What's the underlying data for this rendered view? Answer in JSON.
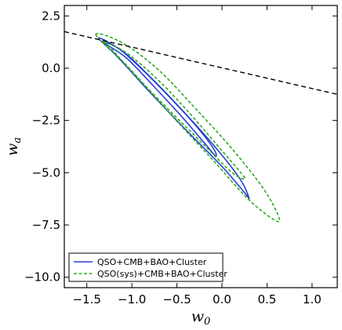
{
  "chart_data": {
    "type": "line",
    "xlabel_main": "w",
    "xlabel_sub": "0",
    "ylabel_main": "w",
    "ylabel_sub": "a",
    "xlim": [
      -1.75,
      1.28
    ],
    "ylim": [
      -10.5,
      3.0
    ],
    "xticks": [
      -1.5,
      -1.0,
      -0.5,
      0.0,
      0.5,
      1.0
    ],
    "xtick_labels": [
      "−1.5",
      "−1.0",
      "−0.5",
      "0.0",
      "0.5",
      "1.0"
    ],
    "yticks": [
      2.5,
      0.0,
      -2.5,
      -5.0,
      -7.5,
      -10.0
    ],
    "ytick_labels": [
      "2.5",
      "0.0",
      "−2.5",
      "−5.0",
      "−7.5",
      "−10.0"
    ],
    "grid": false,
    "legend_position": "bottom-left",
    "series": [
      {
        "name": "QSO+CMB+BAO+Cluster",
        "color": "#2b3fd6",
        "style": "solid",
        "contours": [
          {
            "level": "inner",
            "x": [
              -1.32,
              -1.15,
              -0.9,
              -0.6,
              -0.3,
              -0.1,
              -0.07,
              -0.2,
              -0.45,
              -0.75,
              -1.05,
              -1.25,
              -1.32
            ],
            "y": [
              1.25,
              0.95,
              0.0,
              -1.3,
              -2.7,
              -3.8,
              -4.2,
              -3.55,
              -2.3,
              -0.9,
              0.45,
              1.05,
              1.25
            ]
          },
          {
            "level": "outer",
            "x": [
              -1.37,
              -1.1,
              -0.8,
              -0.4,
              -0.05,
              0.2,
              0.3,
              0.25,
              0.0,
              -0.4,
              -0.8,
              -1.15,
              -1.37
            ],
            "y": [
              1.45,
              0.8,
              -0.4,
              -2.2,
              -3.9,
              -5.3,
              -6.2,
              -5.95,
              -4.7,
              -2.95,
              -1.15,
              0.5,
              1.45
            ]
          }
        ]
      },
      {
        "name": "QSO(sys)+CMB+BAO+Cluster",
        "color": "#2aad1e",
        "style": "dashed",
        "contours": [
          {
            "level": "inner",
            "x": [
              -1.3,
              -1.05,
              -0.7,
              -0.35,
              -0.05,
              0.2,
              0.25,
              0.1,
              -0.25,
              -0.6,
              -0.95,
              -1.2,
              -1.3
            ],
            "y": [
              1.25,
              0.7,
              -0.6,
              -2.2,
              -3.7,
              -4.95,
              -5.3,
              -4.95,
              -3.45,
              -1.95,
              -0.4,
              0.8,
              1.25
            ]
          },
          {
            "level": "outer",
            "x": [
              -1.4,
              -1.1,
              -0.7,
              -0.3,
              0.1,
              0.45,
              0.62,
              0.6,
              0.3,
              -0.1,
              -0.55,
              -1.05,
              -1.4
            ],
            "y": [
              1.6,
              1.2,
              -0.1,
              -1.9,
              -3.8,
              -5.7,
              -7.0,
              -7.3,
              -6.3,
              -4.4,
              -2.3,
              0.1,
              1.6
            ]
          }
        ]
      }
    ],
    "reference_line": {
      "style": "dashed",
      "color": "#000000",
      "x": [
        -1.75,
        1.28
      ],
      "y": [
        1.75,
        -1.25
      ]
    }
  }
}
